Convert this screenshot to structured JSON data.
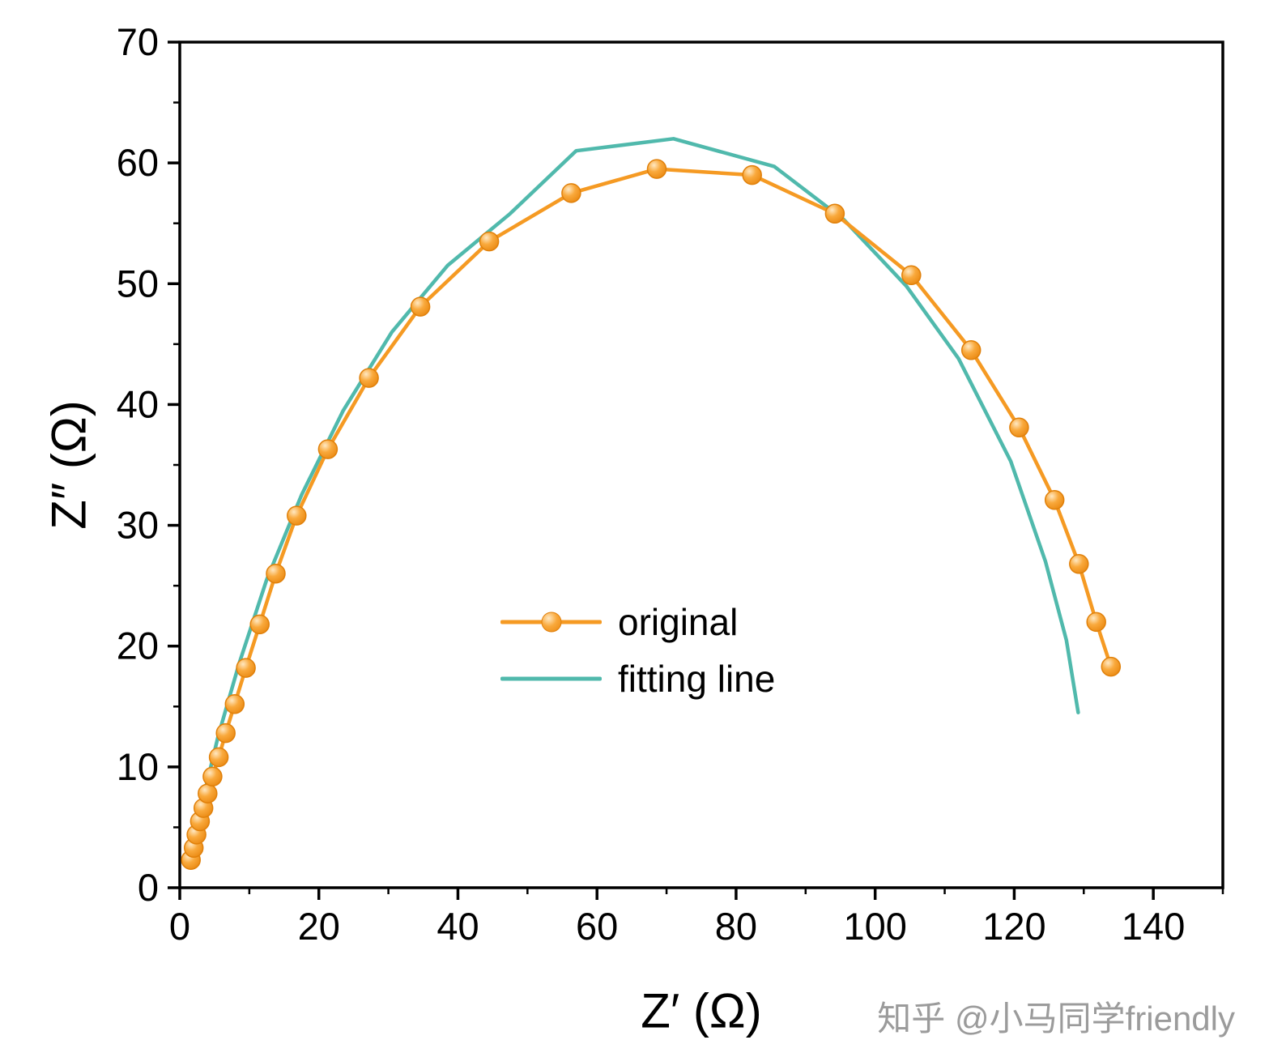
{
  "watermark": {
    "text": "知乎 @小马同学friendly"
  },
  "colors": {
    "axis": "#000000",
    "background": "#ffffff",
    "watermark": "#9b9b9b",
    "original_series": "#F59A23",
    "fitting_series": "#50B9AC"
  },
  "chart_data": {
    "type": "line",
    "title": "",
    "xlabel": "Z′ (Ω)",
    "ylabel": "Z″ (Ω)",
    "xlim": [
      0,
      150
    ],
    "ylim": [
      0,
      70
    ],
    "x_ticks": [
      0,
      20,
      40,
      60,
      80,
      100,
      120,
      140
    ],
    "y_ticks": [
      0,
      10,
      20,
      30,
      40,
      50,
      60,
      70
    ],
    "grid": false,
    "legend_position": "inside center-left",
    "series": [
      {
        "name": "original",
        "color": "#F59A23",
        "marker": "circle",
        "x": [
          1.6,
          2.0,
          2.4,
          2.9,
          3.4,
          4.0,
          4.7,
          5.6,
          6.6,
          7.9,
          9.5,
          11.5,
          13.8,
          16.8,
          21.3,
          27.2,
          34.6,
          44.5,
          56.3,
          68.6,
          82.3,
          94.2,
          105.2,
          113.8,
          120.7,
          125.8,
          129.3,
          131.8,
          133.9
        ],
        "y": [
          2.3,
          3.3,
          4.4,
          5.5,
          6.6,
          7.8,
          9.2,
          10.8,
          12.8,
          15.2,
          18.2,
          21.8,
          26.0,
          30.8,
          36.3,
          42.2,
          48.1,
          53.5,
          57.5,
          59.5,
          59.0,
          55.8,
          50.7,
          44.5,
          38.1,
          32.1,
          26.8,
          22.0,
          18.3
        ]
      },
      {
        "name": "fitting line",
        "color": "#50B9AC",
        "marker": "none",
        "x": [
          1.5,
          3.2,
          5.5,
          8.5,
          12.5,
          17.5,
          23.5,
          30.5,
          38.5,
          47.5,
          57.0,
          71.0,
          85.5,
          95.5,
          104.5,
          112.0,
          119.5,
          124.5,
          127.5,
          129.2
        ],
        "y": [
          2.0,
          7.0,
          12.5,
          18.5,
          25.5,
          32.5,
          39.5,
          46.0,
          51.5,
          55.8,
          61.0,
          62.0,
          59.7,
          55.3,
          49.8,
          43.8,
          35.3,
          27.0,
          20.5,
          14.5
        ]
      }
    ]
  }
}
